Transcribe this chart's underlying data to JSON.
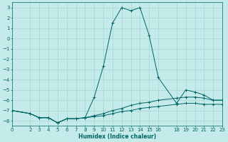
{
  "xlabel": "Humidex (Indice chaleur)",
  "bg_color": "#c5eaea",
  "grid_color": "#a8d5d5",
  "line_color": "#006666",
  "xlim": [
    0,
    23
  ],
  "ylim": [
    -8.5,
    3.5
  ],
  "yticks": [
    3,
    2,
    1,
    0,
    -1,
    -2,
    -3,
    -4,
    -5,
    -6,
    -7,
    -8
  ],
  "xticks": [
    0,
    2,
    3,
    4,
    5,
    6,
    7,
    8,
    9,
    10,
    11,
    12,
    13,
    14,
    15,
    16,
    18,
    19,
    20,
    21,
    22,
    23
  ],
  "series": [
    {
      "x": [
        0,
        2,
        3,
        4,
        5,
        6,
        7,
        8,
        9,
        10,
        11,
        12,
        13,
        14,
        15,
        16,
        18,
        19,
        20,
        21,
        22,
        23
      ],
      "y": [
        -7.0,
        -7.3,
        -7.7,
        -7.7,
        -8.2,
        -7.8,
        -7.8,
        -7.7,
        -5.7,
        -2.7,
        1.5,
        3.0,
        2.7,
        3.0,
        0.3,
        -3.8,
        -6.3,
        -5.0,
        -5.2,
        -5.5,
        -6.0,
        -6.0
      ]
    },
    {
      "x": [
        0,
        2,
        3,
        4,
        5,
        6,
        7,
        8,
        9,
        10,
        11,
        12,
        13,
        14,
        15,
        16,
        18,
        19,
        20,
        21,
        22,
        23
      ],
      "y": [
        -7.0,
        -7.3,
        -7.7,
        -7.7,
        -8.2,
        -7.8,
        -7.8,
        -7.7,
        -7.5,
        -7.3,
        -7.0,
        -6.8,
        -6.5,
        -6.3,
        -6.2,
        -6.0,
        -5.8,
        -5.7,
        -5.7,
        -5.8,
        -6.0,
        -6.0
      ]
    },
    {
      "x": [
        0,
        2,
        3,
        4,
        5,
        6,
        7,
        8,
        9,
        10,
        11,
        12,
        13,
        14,
        15,
        16,
        18,
        19,
        20,
        21,
        22,
        23
      ],
      "y": [
        -7.0,
        -7.3,
        -7.7,
        -7.7,
        -8.2,
        -7.8,
        -7.8,
        -7.7,
        -7.6,
        -7.5,
        -7.3,
        -7.1,
        -7.0,
        -6.8,
        -6.7,
        -6.6,
        -6.4,
        -6.3,
        -6.3,
        -6.4,
        -6.4,
        -6.4
      ]
    }
  ]
}
